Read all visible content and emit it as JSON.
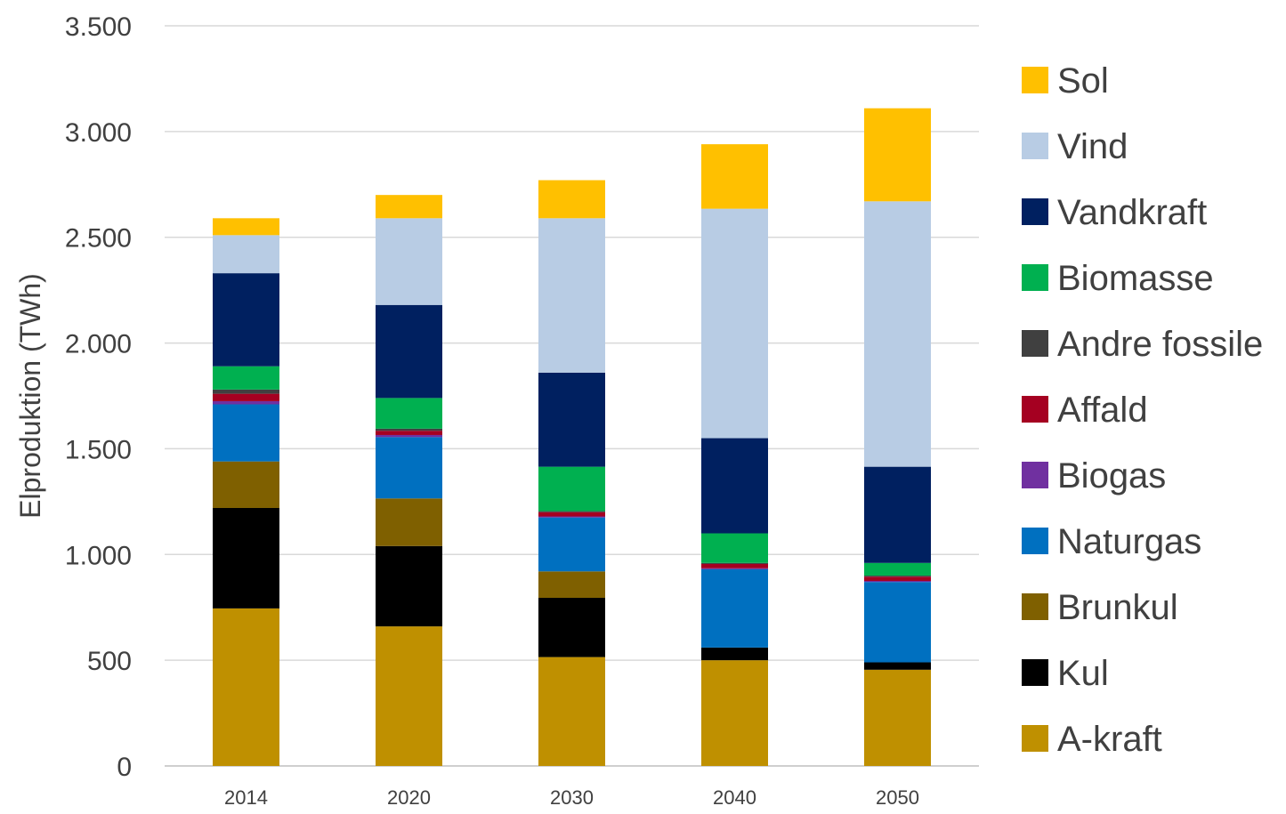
{
  "chart_data": {
    "type": "bar",
    "stacked": true,
    "title": "",
    "xlabel": "",
    "ylabel": "Elproduktion (TWh)",
    "ylim": [
      0,
      3500
    ],
    "yticks": [
      0,
      500,
      1000,
      1500,
      2000,
      2500,
      3000,
      3500
    ],
    "ytick_labels": [
      "0",
      "500",
      "1.000",
      "1.500",
      "2.000",
      "2.500",
      "3.000",
      "3.500"
    ],
    "grid": true,
    "legend_position": "right",
    "categories": [
      "2014",
      "2020",
      "2030",
      "2040",
      "2050"
    ],
    "series": [
      {
        "name": "A-kraft",
        "color": "#BF9000",
        "values": [
          745,
          660,
          515,
          500,
          455
        ]
      },
      {
        "name": "Kul",
        "color": "#000000",
        "values": [
          475,
          380,
          280,
          60,
          35
        ]
      },
      {
        "name": "Brunkul",
        "color": "#7F6000",
        "values": [
          220,
          225,
          125,
          0,
          0
        ]
      },
      {
        "name": "Naturgas",
        "color": "#0070C0",
        "values": [
          270,
          290,
          255,
          370,
          380
        ]
      },
      {
        "name": "Biogas",
        "color": "#7030A0",
        "values": [
          15,
          10,
          5,
          5,
          5
        ]
      },
      {
        "name": "Affald",
        "color": "#A50021",
        "values": [
          35,
          20,
          20,
          20,
          20
        ]
      },
      {
        "name": "Andre fossile",
        "color": "#404040",
        "values": [
          20,
          10,
          5,
          5,
          5
        ]
      },
      {
        "name": "Biomasse",
        "color": "#00B050",
        "values": [
          110,
          145,
          210,
          140,
          60
        ]
      },
      {
        "name": "Vandkraft",
        "color": "#002060",
        "values": [
          440,
          440,
          445,
          450,
          455
        ]
      },
      {
        "name": "Vind",
        "color": "#B8CCE4",
        "values": [
          180,
          410,
          730,
          1085,
          1255
        ]
      },
      {
        "name": "Sol",
        "color": "#FFC000",
        "values": [
          80,
          110,
          180,
          305,
          440
        ]
      }
    ]
  }
}
